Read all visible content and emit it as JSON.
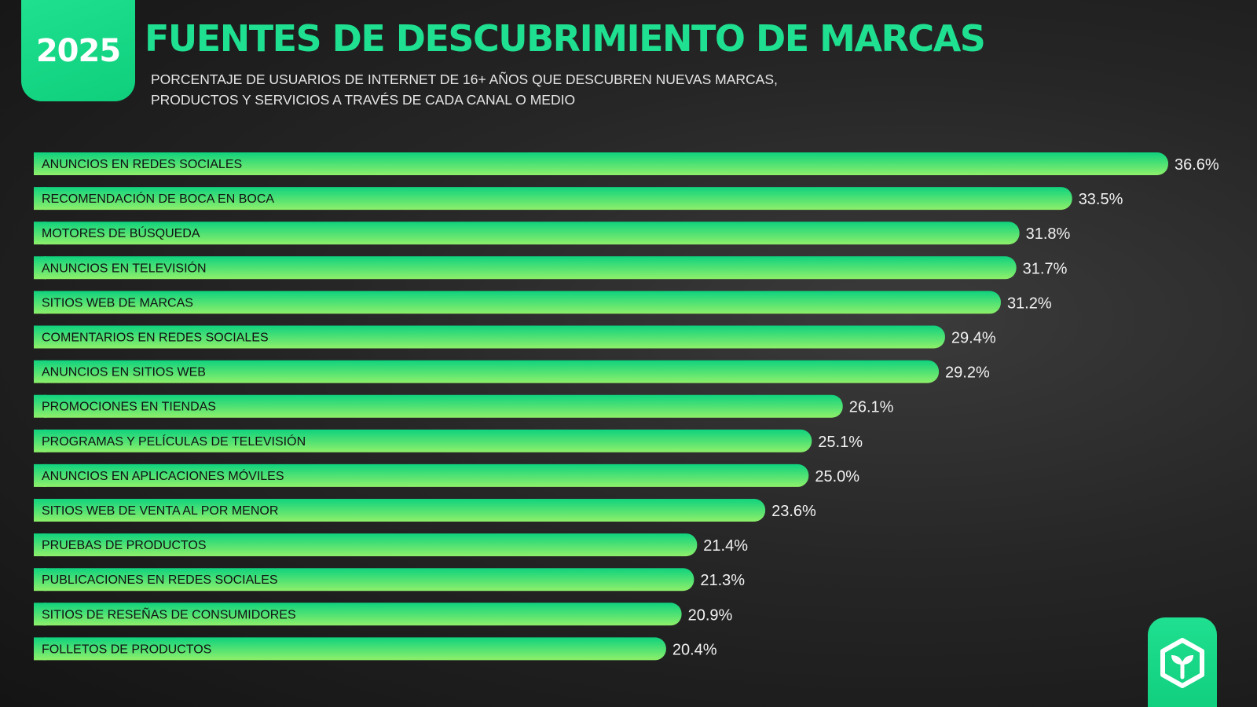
{
  "badge": {
    "year": "2025"
  },
  "header": {
    "title": "FUENTES DE DESCUBRIMIENTO DE MARCAS",
    "subtitle": "PORCENTAJE DE USUARIOS DE INTERNET DE 16+ AÑOS QUE DESCUBREN NUEVAS MARCAS, PRODUCTOS Y SERVICIOS A TRAVÉS DE CADA CANAL O MEDIO"
  },
  "colors": {
    "accent": "#1fe090",
    "bar_start": "#0fd27e",
    "bar_end": "#8ef06a",
    "background": "#262626"
  },
  "logo": {
    "icon": "cube-sprout-icon"
  },
  "chart_data": {
    "type": "bar",
    "orientation": "horizontal",
    "categories": [
      "ANUNCIOS EN REDES SOCIALES",
      "RECOMENDACIÓN DE BOCA EN BOCA",
      "MOTORES DE BÚSQUEDA",
      "ANUNCIOS EN TELEVISIÓN",
      "SITIOS WEB DE MARCAS",
      "COMENTARIOS EN REDES SOCIALES",
      "ANUNCIOS EN SITIOS WEB",
      "PROMOCIONES EN TIENDAS",
      "PROGRAMAS Y PELÍCULAS DE TELEVISIÓN",
      "ANUNCIOS EN APLICACIONES MÓVILES",
      "SITIOS WEB DE VENTA AL POR MENOR",
      "PRUEBAS DE PRODUCTOS",
      "PUBLICACIONES EN REDES SOCIALES",
      "SITIOS DE RESEÑAS DE CONSUMIDORES",
      "FOLLETOS DE PRODUCTOS"
    ],
    "values": [
      36.6,
      33.5,
      31.8,
      31.7,
      31.2,
      29.4,
      29.2,
      26.1,
      25.1,
      25.0,
      23.6,
      21.4,
      21.3,
      20.9,
      20.4
    ],
    "value_labels": [
      "36.6%",
      "33.5%",
      "31.8%",
      "31.7%",
      "31.2%",
      "29.4%",
      "29.2%",
      "26.1%",
      "25.1%",
      "25.0%",
      "23.6%",
      "21.4%",
      "21.3%",
      "20.9%",
      "20.4%"
    ],
    "unit": "%",
    "xlim": [
      0,
      36.6
    ],
    "grid": false,
    "legend": "none"
  }
}
